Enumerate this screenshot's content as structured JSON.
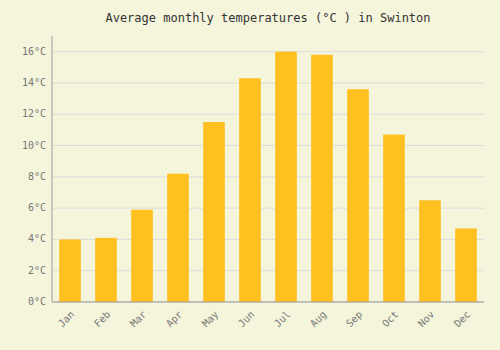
{
  "chart_data": {
    "type": "bar",
    "title": "Average monthly temperatures (°C ) in Swinton",
    "categories": [
      "Jan",
      "Feb",
      "Mar",
      "Apr",
      "May",
      "Jun",
      "Jul",
      "Aug",
      "Sep",
      "Oct",
      "Nov",
      "Dec"
    ],
    "values": [
      4.0,
      4.1,
      5.9,
      8.2,
      11.5,
      14.3,
      16.0,
      15.8,
      13.6,
      10.7,
      6.5,
      4.7
    ],
    "color": "#FFC020",
    "ylim": [
      0,
      17
    ],
    "yticks": [
      {
        "value": 0,
        "label": "0°C"
      },
      {
        "value": 2,
        "label": "2°C"
      },
      {
        "value": 4,
        "label": "4°C"
      },
      {
        "value": 6,
        "label": "6°C"
      },
      {
        "value": 8,
        "label": "8°C"
      },
      {
        "value": 10,
        "label": "10°C"
      },
      {
        "value": 12,
        "label": "12°C"
      },
      {
        "value": 14,
        "label": "14°C"
      },
      {
        "value": 16,
        "label": "16°C"
      }
    ],
    "grid": true
  }
}
